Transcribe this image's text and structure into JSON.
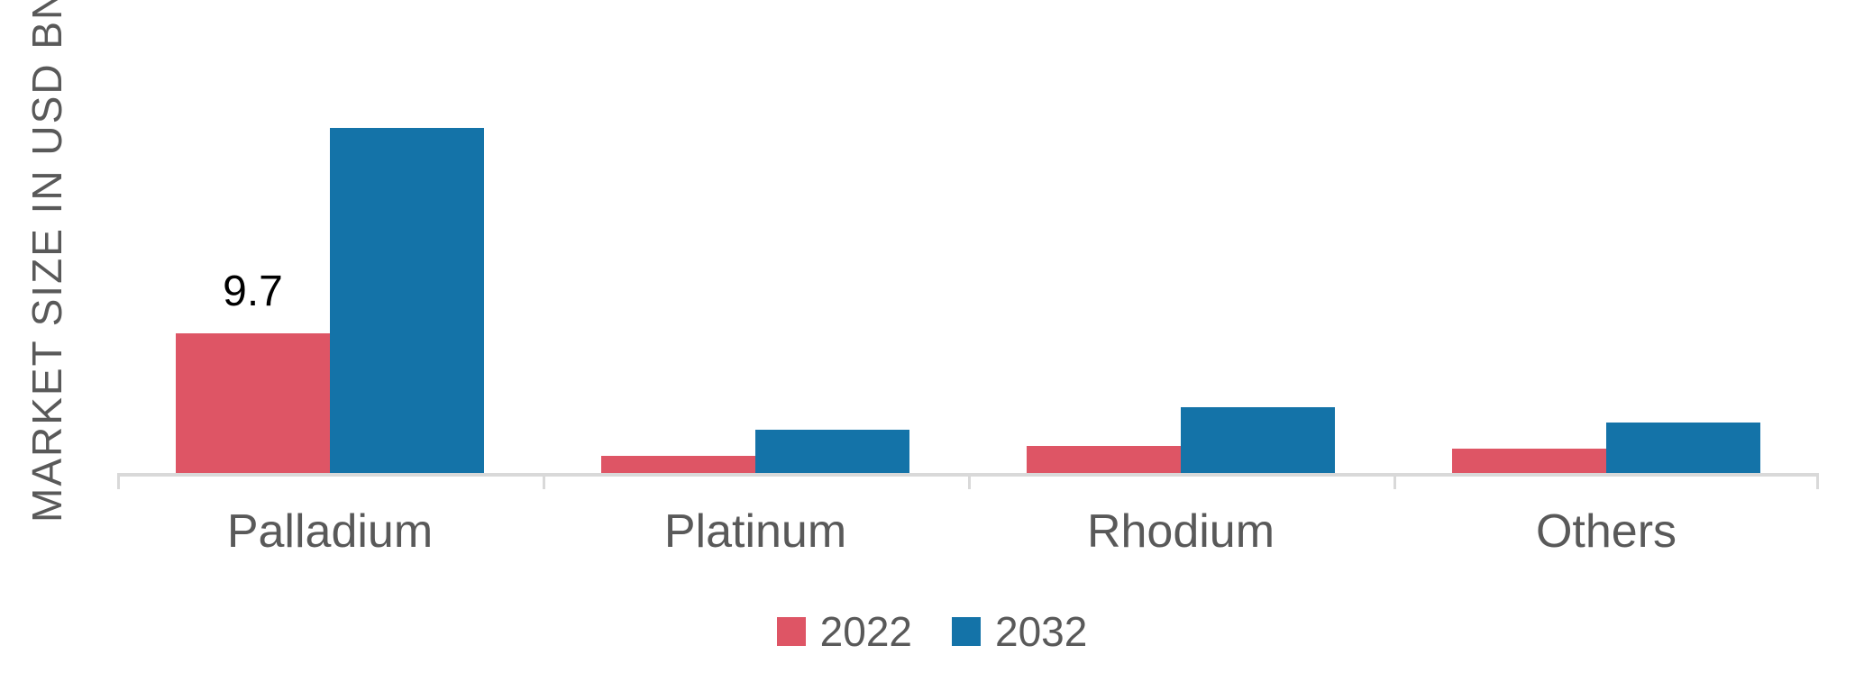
{
  "chart_data": {
    "type": "bar",
    "title": "",
    "xlabel": "",
    "ylabel": "MARKET SIZE IN USD BN",
    "categories": [
      "Palladium",
      "Platinum",
      "Rhodium",
      "Others"
    ],
    "series": [
      {
        "name": "2022",
        "color": "#de5565",
        "values": [
          9.7,
          1.2,
          1.9,
          1.7
        ]
      },
      {
        "name": "2032",
        "color": "#1473a8",
        "values": [
          24.0,
          3.0,
          4.6,
          3.5
        ]
      }
    ],
    "data_labels": [
      {
        "series": "2022",
        "category": "Palladium",
        "text": "9.7"
      }
    ],
    "legend": {
      "position": "bottom",
      "entries": [
        "2022",
        "2032"
      ]
    },
    "axis": {
      "baseline_color": "#d9d9d9",
      "tick_marks": true,
      "label_color": "#595959",
      "data_label_color": "#000000"
    },
    "ylim": [
      0,
      33
    ],
    "grid": false
  }
}
